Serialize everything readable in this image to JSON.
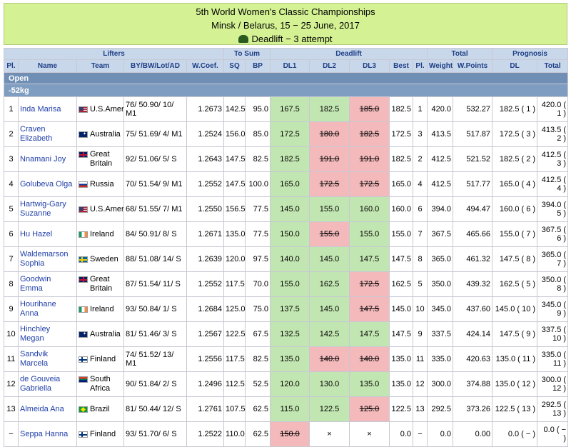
{
  "header": {
    "title": "5th World Women's Classic Championships",
    "location": "Minsk / Belarus, 15 − 25 June, 2017",
    "event": "Deadlift − 3 attempt"
  },
  "columns": {
    "groups": {
      "lifters": "Lifters",
      "to_sum": "To Sum",
      "deadlift": "Deadlift",
      "total": "Total",
      "prognosis": "Prognosis"
    },
    "pl": "Pl.",
    "name": "Name",
    "team": "Team",
    "info": "BY/BW/Lot/AD",
    "wcoef": "W.Coef.",
    "sq": "SQ",
    "bp": "BP",
    "dl1": "DL1",
    "dl2": "DL2",
    "dl3": "DL3",
    "best": "Best",
    "pl2": "Pl.",
    "weight": "Weight",
    "wpoints": "W.Points",
    "dl": "DL",
    "ptotal": "Total"
  },
  "division": "Open",
  "weight_class": "-52kg",
  "rows": [
    {
      "pl": "1",
      "name": "Inda Marisa",
      "flag": "us",
      "team": "U.S.America",
      "info": "76/ 50.90/ 10/ M1",
      "wcoef": "1.2673",
      "sq": "142.5",
      "bp": "95.0",
      "dl1": "167.5",
      "dl1s": "good",
      "dl2": "182.5",
      "dl2s": "good",
      "dl3": "185.0",
      "dl3s": "bad",
      "best": "182.5",
      "pl2": "1",
      "weight": "420.0",
      "wpoints": "532.27",
      "pdl": "182.5 ( 1 )",
      "ptotal": "420.0 ( 1 )"
    },
    {
      "pl": "2",
      "name": "Craven Elizabeth",
      "flag": "au",
      "team": "Australia",
      "info": "75/ 51.69/ 4/ M1",
      "wcoef": "1.2524",
      "sq": "156.0",
      "bp": "85.0",
      "dl1": "172.5",
      "dl1s": "good",
      "dl2": "180.0",
      "dl2s": "bad",
      "dl3": "182.5",
      "dl3s": "bad",
      "best": "172.5",
      "pl2": "3",
      "weight": "413.5",
      "wpoints": "517.87",
      "pdl": "172.5 ( 3 )",
      "ptotal": "413.5 ( 2 )"
    },
    {
      "pl": "3",
      "name": "Nnamani Joy",
      "flag": "gb",
      "team": "Great Britain",
      "info": "92/ 51.06/ 5/ S",
      "wcoef": "1.2643",
      "sq": "147.5",
      "bp": "82.5",
      "dl1": "182.5",
      "dl1s": "good",
      "dl2": "191.0",
      "dl2s": "bad",
      "dl3": "191.0",
      "dl3s": "bad",
      "best": "182.5",
      "pl2": "2",
      "weight": "412.5",
      "wpoints": "521.52",
      "pdl": "182.5 ( 2 )",
      "ptotal": "412.5 ( 3 )"
    },
    {
      "pl": "4",
      "name": "Golubeva Olga",
      "flag": "ru",
      "team": "Russia",
      "info": "70/ 51.54/ 9/ M1",
      "wcoef": "1.2552",
      "sq": "147.5",
      "bp": "100.0",
      "dl1": "165.0",
      "dl1s": "good",
      "dl2": "172.5",
      "dl2s": "bad",
      "dl3": "172.5",
      "dl3s": "bad",
      "best": "165.0",
      "pl2": "4",
      "weight": "412.5",
      "wpoints": "517.77",
      "pdl": "165.0 ( 4 )",
      "ptotal": "412.5 ( 4 )"
    },
    {
      "pl": "5",
      "name": "Hartwig-Gary Suzanne",
      "flag": "us",
      "team": "U.S.America",
      "info": "68/ 51.55/ 7/ M1",
      "wcoef": "1.2550",
      "sq": "156.5",
      "bp": "77.5",
      "dl1": "145.0",
      "dl1s": "good",
      "dl2": "155.0",
      "dl2s": "good",
      "dl3": "160.0",
      "dl3s": "good",
      "best": "160.0",
      "pl2": "6",
      "weight": "394.0",
      "wpoints": "494.47",
      "pdl": "160.0 ( 6 )",
      "ptotal": "394.0 ( 5 )"
    },
    {
      "pl": "6",
      "name": "Hu Hazel",
      "flag": "ie",
      "team": "Ireland",
      "info": "84/ 50.91/ 8/ S",
      "wcoef": "1.2671",
      "sq": "135.0",
      "bp": "77.5",
      "dl1": "150.0",
      "dl1s": "good",
      "dl2": "155.0",
      "dl2s": "bad",
      "dl3": "155.0",
      "dl3s": "good",
      "best": "155.0",
      "pl2": "7",
      "weight": "367.5",
      "wpoints": "465.66",
      "pdl": "155.0 ( 7 )",
      "ptotal": "367.5 ( 6 )"
    },
    {
      "pl": "7",
      "name": "Waldemarson Sophia",
      "flag": "se",
      "team": "Sweden",
      "info": "88/ 51.08/ 14/ S",
      "wcoef": "1.2639",
      "sq": "120.0",
      "bp": "97.5",
      "dl1": "140.0",
      "dl1s": "good",
      "dl2": "145.0",
      "dl2s": "good",
      "dl3": "147.5",
      "dl3s": "good",
      "best": "147.5",
      "pl2": "8",
      "weight": "365.0",
      "wpoints": "461.32",
      "pdl": "147.5 ( 8 )",
      "ptotal": "365.0 ( 7 )"
    },
    {
      "pl": "8",
      "name": "Goodwin Emma",
      "flag": "gb",
      "team": "Great Britain",
      "info": "87/ 51.54/ 11/ S",
      "wcoef": "1.2552",
      "sq": "117.5",
      "bp": "70.0",
      "dl1": "155.0",
      "dl1s": "good",
      "dl2": "162.5",
      "dl2s": "good",
      "dl3": "172.5",
      "dl3s": "bad",
      "best": "162.5",
      "pl2": "5",
      "weight": "350.0",
      "wpoints": "439.32",
      "pdl": "162.5 ( 5 )",
      "ptotal": "350.0 ( 8 )"
    },
    {
      "pl": "9",
      "name": "Hourihane Anna",
      "flag": "ie",
      "team": "Ireland",
      "info": "93/ 50.84/ 1/ S",
      "wcoef": "1.2684",
      "sq": "125.0",
      "bp": "75.0",
      "dl1": "137.5",
      "dl1s": "good",
      "dl2": "145.0",
      "dl2s": "good",
      "dl3": "147.5",
      "dl3s": "bad",
      "best": "145.0",
      "pl2": "10",
      "weight": "345.0",
      "wpoints": "437.60",
      "pdl": "145.0 ( 10 )",
      "ptotal": "345.0 ( 9 )"
    },
    {
      "pl": "10",
      "name": "Hinchley Megan",
      "flag": "au",
      "team": "Australia",
      "info": "81/ 51.46/ 3/ S",
      "wcoef": "1.2567",
      "sq": "122.5",
      "bp": "67.5",
      "dl1": "132.5",
      "dl1s": "good",
      "dl2": "142.5",
      "dl2s": "good",
      "dl3": "147.5",
      "dl3s": "good",
      "best": "147.5",
      "pl2": "9",
      "weight": "337.5",
      "wpoints": "424.14",
      "pdl": "147.5 ( 9 )",
      "ptotal": "337.5 ( 10 )"
    },
    {
      "pl": "11",
      "name": "Sandvik Marcela",
      "flag": "fi",
      "team": "Finland",
      "info": "74/ 51.52/ 13/ M1",
      "wcoef": "1.2556",
      "sq": "117.5",
      "bp": "82.5",
      "dl1": "135.0",
      "dl1s": "good",
      "dl2": "140.0",
      "dl2s": "bad",
      "dl3": "140.0",
      "dl3s": "bad",
      "best": "135.0",
      "pl2": "11",
      "weight": "335.0",
      "wpoints": "420.63",
      "pdl": "135.0 ( 11 )",
      "ptotal": "335.0 ( 11 )"
    },
    {
      "pl": "12",
      "name": "de Gouveia Gabriella",
      "flag": "za",
      "team": "South Africa",
      "info": "90/ 51.84/ 2/ S",
      "wcoef": "1.2496",
      "sq": "112.5",
      "bp": "52.5",
      "dl1": "120.0",
      "dl1s": "good",
      "dl2": "130.0",
      "dl2s": "good",
      "dl3": "135.0",
      "dl3s": "good",
      "best": "135.0",
      "pl2": "12",
      "weight": "300.0",
      "wpoints": "374.88",
      "pdl": "135.0 ( 12 )",
      "ptotal": "300.0 ( 12 )"
    },
    {
      "pl": "13",
      "name": "Almeida Ana",
      "flag": "br",
      "team": "Brazil",
      "info": "81/ 50.44/ 12/ S",
      "wcoef": "1.2761",
      "sq": "107.5",
      "bp": "62.5",
      "dl1": "115.0",
      "dl1s": "good",
      "dl2": "122.5",
      "dl2s": "good",
      "dl3": "125.0",
      "dl3s": "bad",
      "best": "122.5",
      "pl2": "13",
      "weight": "292.5",
      "wpoints": "373.26",
      "pdl": "122.5 ( 13 )",
      "ptotal": "292.5 ( 13 )"
    },
    {
      "pl": "−",
      "name": "Seppa Hanna",
      "flag": "fi",
      "team": "Finland",
      "info": "93/ 51.70/ 6/ S",
      "wcoef": "1.2522",
      "sq": "110.0",
      "bp": "62.5",
      "dl1": "150.0",
      "dl1s": "bad",
      "dl2": "×",
      "dl2s": "na",
      "dl3": "×",
      "dl3s": "na",
      "best": "0.0",
      "pl2": "−",
      "weight": "0.0",
      "wpoints": "0.00",
      "pdl": "0.0 ( − )",
      "ptotal": "0.0 ( − )"
    }
  ]
}
